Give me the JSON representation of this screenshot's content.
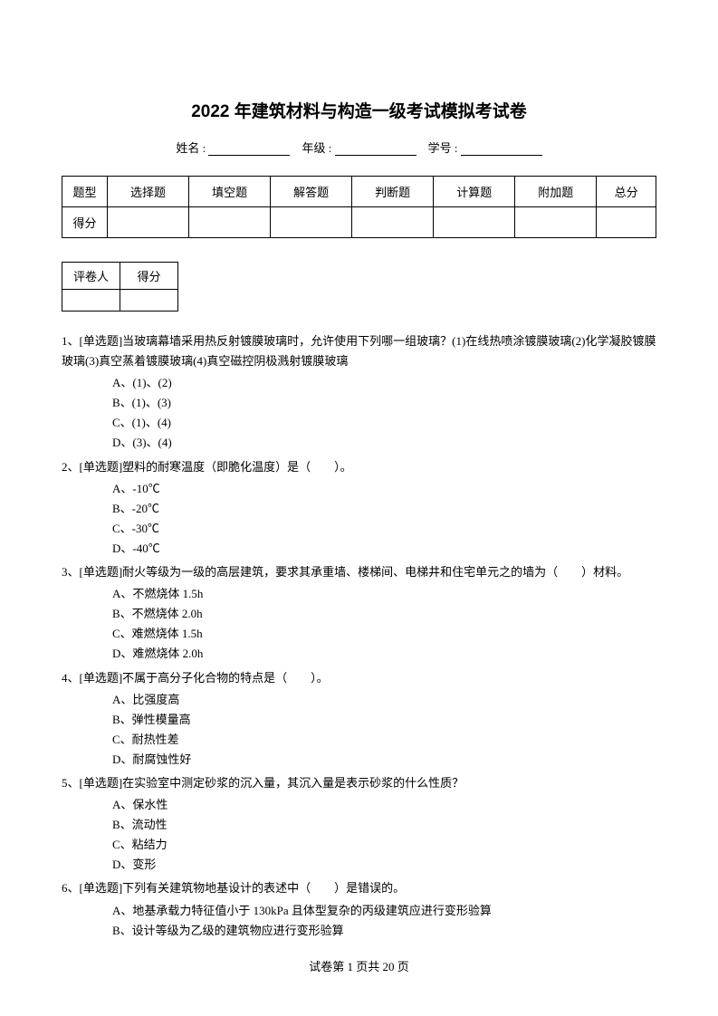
{
  "title": "2022 年建筑材料与构造一级考试模拟考试卷",
  "studentInfo": {
    "nameLabel": "姓名 :",
    "gradeLabel": "年级 :",
    "idLabel": "学号 :"
  },
  "scoreTable": {
    "rowLabels": [
      "题型",
      "得分"
    ],
    "columns": [
      "选择题",
      "填空题",
      "解答题",
      "判断题",
      "计算题",
      "附加题",
      "总分"
    ]
  },
  "graderTable": {
    "headers": [
      "评卷人",
      "得分"
    ]
  },
  "questions": [
    {
      "num": "1、",
      "type": "[单选题]",
      "text": "当玻璃幕墙采用热反射镀膜玻璃时，允许使用下列哪一组玻璃？(1)在线热喷涂镀膜玻璃(2)化学凝胶镀膜玻璃(3)真空蒸着镀膜玻璃(4)真空磁控阴极溅射镀膜玻璃",
      "options": [
        "A、(1)、(2)",
        "B、(1)、(3)",
        "C、(1)、(4)",
        "D、(3)、(4)"
      ]
    },
    {
      "num": "2、",
      "type": "[单选题]",
      "text": "塑料的耐寒温度（即脆化温度）是（　　）。",
      "options": [
        "A、-10℃",
        "B、-20℃",
        "C、-30℃",
        "D、-40℃"
      ]
    },
    {
      "num": "3、",
      "type": "[单选题]",
      "text": "耐火等级为一级的高层建筑，要求其承重墙、楼梯间、电梯井和住宅单元之的墙为（　　）材料。",
      "options": [
        "A、不燃烧体 1.5h",
        "B、不燃烧体 2.0h",
        "C、难燃烧体 1.5h",
        "D、难燃烧体 2.0h"
      ]
    },
    {
      "num": "4、",
      "type": "[单选题]",
      "text": "不属于高分子化合物的特点是（　　）。",
      "options": [
        "A、比强度高",
        "B、弹性模量高",
        "C、耐热性差",
        "D、耐腐蚀性好"
      ]
    },
    {
      "num": "5、",
      "type": "[单选题]",
      "text": "在实验室中测定砂浆的沉入量，其沉入量是表示砂浆的什么性质？",
      "options": [
        "A、保水性",
        "B、流动性",
        "C、粘结力",
        "D、变形"
      ]
    },
    {
      "num": "6、",
      "type": "[单选题]",
      "text": "下列有关建筑物地基设计的表述中（　　）是错误的。",
      "options": [
        "A、地基承载力特征值小于 130kPa 且体型复杂的丙级建筑应进行变形验算",
        "B、设计等级为乙级的建筑物应进行变形验算"
      ]
    }
  ],
  "footer": "试卷第 1 页共 20 页"
}
